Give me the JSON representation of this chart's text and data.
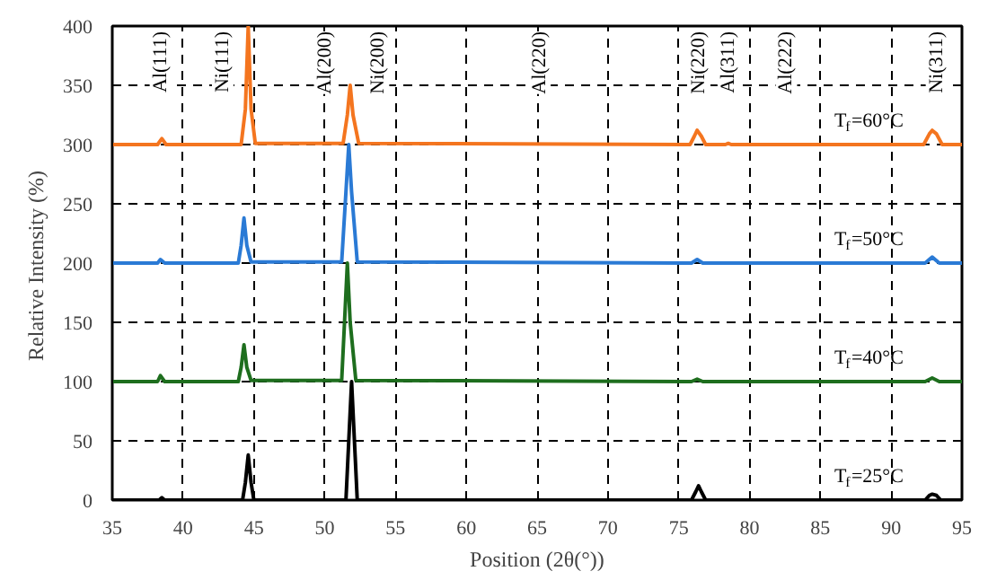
{
  "chart_data": {
    "type": "line",
    "xlabel": "Position (2θ(°))",
    "ylabel": "Relative  Intensity (%)",
    "xlim": [
      35,
      95
    ],
    "xticks": [
      35,
      40,
      45,
      50,
      55,
      60,
      65,
      70,
      75,
      80,
      85,
      90,
      95
    ],
    "ylim": [
      0,
      400
    ],
    "yticks": [
      0,
      50,
      100,
      150,
      200,
      250,
      300,
      350,
      400
    ],
    "grid": true,
    "line_style": "solid",
    "series": [
      {
        "name": "T$_{f}$=60°C",
        "color": "#f4751f",
        "x": [
          35,
          38.2,
          38.5,
          38.8,
          44.1,
          44.4,
          44.6,
          44.8,
          45.1,
          51.3,
          51.6,
          51.8,
          52.0,
          52.4,
          75.8,
          76.1,
          76.3,
          76.6,
          76.9,
          78.3,
          78.5,
          78.7,
          92.3,
          92.7,
          92.9,
          93.2,
          93.6,
          95
        ],
        "values": [
          300,
          300,
          305,
          300,
          300,
          330,
          400,
          330,
          301,
          301,
          325,
          350,
          325,
          301,
          300,
          307,
          312,
          307,
          300,
          300,
          301,
          300,
          300,
          309,
          312,
          309,
          300,
          300
        ]
      },
      {
        "name": "T$_{f}$=50°C",
        "color": "#2a7ad5",
        "x": [
          35,
          38.2,
          38.4,
          38.7,
          43.9,
          44.1,
          44.3,
          44.5,
          44.8,
          51.2,
          51.5,
          51.7,
          51.9,
          52.3,
          75.9,
          76.3,
          76.7,
          92.4,
          92.9,
          93.4,
          95
        ],
        "values": [
          200,
          200,
          203,
          200,
          200,
          215,
          238,
          215,
          201,
          201,
          260,
          300,
          260,
          201,
          200,
          203,
          200,
          200,
          205,
          200,
          200
        ]
      },
      {
        "name": "T$_{f}$=40°C",
        "color": "#1e6e1e",
        "x": [
          35,
          38.2,
          38.4,
          38.7,
          43.9,
          44.1,
          44.3,
          44.5,
          44.8,
          51.2,
          51.4,
          51.6,
          51.8,
          52.2,
          75.9,
          76.3,
          76.7,
          92.4,
          92.9,
          93.4,
          95
        ],
        "values": [
          100,
          100,
          105,
          100,
          100,
          112,
          131,
          112,
          101,
          101,
          150,
          200,
          150,
          101,
          100,
          102,
          100,
          100,
          103,
          100,
          100
        ]
      },
      {
        "name": "T$_{f}$=25°C",
        "color": "#000000",
        "x": [
          35,
          38.3,
          38.5,
          38.7,
          44.2,
          44.4,
          44.6,
          44.8,
          45.0,
          51.5,
          51.7,
          51.9,
          52.1,
          52.3,
          75.9,
          76.2,
          76.4,
          76.6,
          76.9,
          92.4,
          92.7,
          92.9,
          93.2,
          93.5,
          95
        ],
        "values": [
          0,
          0,
          2,
          0,
          0,
          15,
          38,
          15,
          0,
          0,
          50,
          100,
          50,
          0,
          0,
          7,
          12,
          7,
          0,
          0,
          4,
          5,
          4,
          0,
          0
        ]
      }
    ],
    "annotations": [
      {
        "text": "Al(111)",
        "x": 38.4
      },
      {
        "text": "Ni(111)",
        "x": 42.8
      },
      {
        "text": "Al(200)",
        "x": 50.0
      },
      {
        "text": "Ni(200)",
        "x": 53.8
      },
      {
        "text": "Al(220)",
        "x": 65.2
      },
      {
        "text": "Ni(220)",
        "x": 76.4
      },
      {
        "text": "Al(311)",
        "x": 78.5
      },
      {
        "text": "Al(222)",
        "x": 82.6
      },
      {
        "text": "Ni(311)",
        "x": 93.2
      }
    ]
  }
}
